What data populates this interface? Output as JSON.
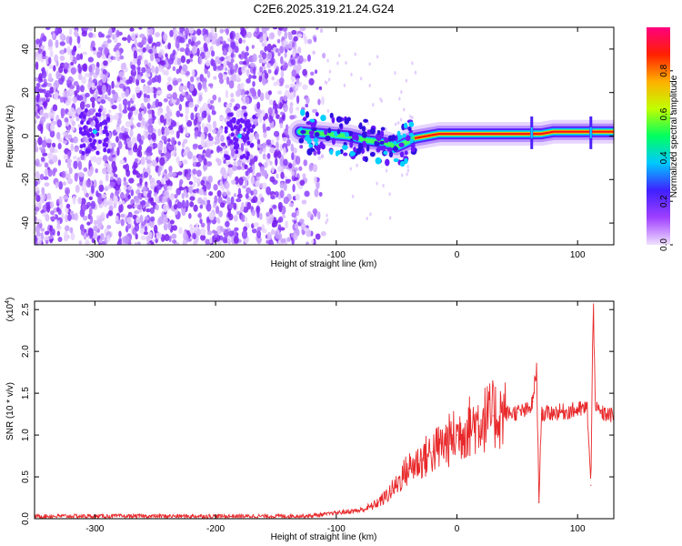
{
  "page": {
    "title": "C2E6.2025.319.21.24.G24"
  },
  "chart_data": [
    {
      "type": "heatmap",
      "title": "C2E6.2025.319.21.24.G24",
      "xlabel": "Height of straight line (km)",
      "ylabel": "Frequency (Hz)",
      "xlim": [
        -350,
        130
      ],
      "ylim": [
        -50,
        50
      ],
      "xticks": [
        -300,
        -200,
        -100,
        0,
        100
      ],
      "yticks": [
        -40,
        -20,
        0,
        20,
        40
      ],
      "colorbar": {
        "label": "Normalized spectral amplitude",
        "range": [
          0.0,
          1.0
        ],
        "ticks": [
          "0.0",
          "0.2",
          "0.4",
          "0.6",
          "0.8"
        ],
        "colors": [
          "#f0e0ff",
          "#a040ff",
          "#4020ff",
          "#00c8ff",
          "#00ff60",
          "#c0ff00",
          "#ffb000",
          "#ff2000",
          "#ff0080"
        ]
      },
      "signal_track": {
        "x": [
          -130,
          -110,
          -90,
          -75,
          -60,
          -50,
          -42,
          -35,
          -25,
          -15,
          0,
          20,
          40,
          60,
          70,
          80,
          90,
          100,
          110,
          120,
          130
        ],
        "y": [
          2,
          1,
          0,
          -2,
          -3,
          -5,
          -3,
          -1,
          0,
          1,
          1,
          1,
          1,
          1,
          1,
          2,
          2,
          2,
          2,
          2,
          2
        ]
      }
    },
    {
      "type": "line",
      "xlabel": "Height of straight line (km)",
      "ylabel": "SNR (10 * v/v)",
      "multiplier_label": "(x10",
      "multiplier_exp": "4",
      "xlim": [
        -350,
        130
      ],
      "ylim": [
        0,
        26000
      ],
      "xticks": [
        -300,
        -200,
        -100,
        0,
        100
      ],
      "yticks": [
        0,
        5000,
        10000,
        15000,
        20000,
        25000
      ],
      "ytick_labels": [
        "0.0",
        "0.5",
        "1.0",
        "1.5",
        "2.0",
        "2.5"
      ],
      "series": [
        {
          "color": "#e8282a",
          "x": [
            -350,
            -300,
            -250,
            -200,
            -150,
            -120,
            -100,
            -80,
            -70,
            -60,
            -50,
            -45,
            -40,
            -35,
            -30,
            -20,
            -10,
            0,
            10,
            20,
            30,
            40,
            50,
            60,
            63,
            66,
            68,
            70,
            80,
            90,
            100,
            108,
            111,
            113,
            115,
            120,
            130
          ],
          "y": [
            300,
            300,
            300,
            300,
            300,
            350,
            700,
            1000,
            1500,
            2500,
            4000,
            5200,
            6000,
            6500,
            7000,
            8000,
            9000,
            10000,
            11000,
            11800,
            12300,
            12600,
            12700,
            13000,
            14000,
            18000,
            2000,
            12500,
            12700,
            12800,
            13000,
            13200,
            4000,
            26000,
            13000,
            12600,
            12300
          ]
        }
      ]
    }
  ]
}
